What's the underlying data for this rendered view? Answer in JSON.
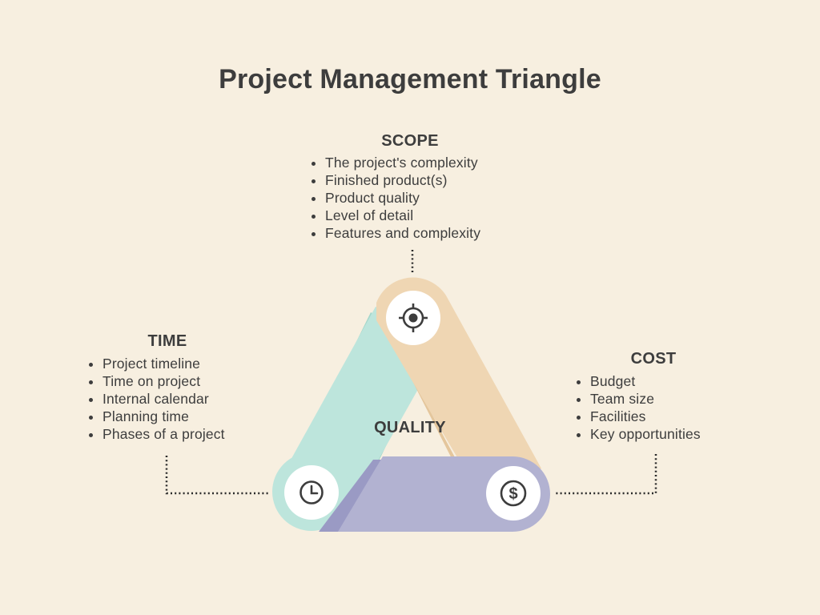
{
  "title": "Project Management Triangle",
  "scope": {
    "heading": "SCOPE",
    "items": [
      "The project's complexity",
      "Finished product(s)",
      "Product quality",
      "Level of detail",
      "Features and complexity"
    ]
  },
  "time": {
    "heading": "TIME",
    "items": [
      "Project timeline",
      "Time on project",
      "Internal calendar",
      "Planning time",
      "Phases of a project"
    ]
  },
  "cost": {
    "heading": "COST",
    "items": [
      "Budget",
      "Team size",
      "Facilities",
      "Key opportunities"
    ]
  },
  "center_label": "QUALITY",
  "icons": {
    "top": "target-icon",
    "left": "clock-icon",
    "right": "dollar-icon"
  },
  "colors": {
    "background": "#f7efe0",
    "text": "#3d3d3d",
    "scope_band": "#efd6b3",
    "scope_band_shadow": "#e4c69c",
    "time_band": "#bde5dc",
    "time_band_shadow": "#a5d7cb",
    "cost_band": "#b2b2d1",
    "cost_band_shadow": "#9a9ac4",
    "icon_circle": "#ffffff",
    "connector": "#2b2b2b"
  }
}
